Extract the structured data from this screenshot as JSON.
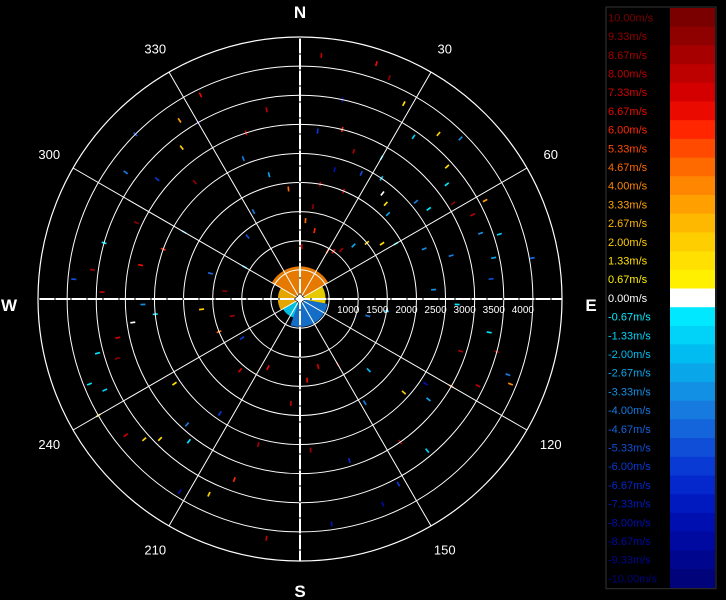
{
  "chart_data": {
    "type": "polar-radar",
    "cardinals": [
      "N",
      "E",
      "S",
      "W"
    ],
    "bearing_labels": [
      30,
      60,
      120,
      150,
      210,
      240,
      300,
      330
    ],
    "range_rings": [
      500,
      1000,
      1500,
      2000,
      2500,
      3000,
      3500,
      4000
    ],
    "range_labels": [
      "1000",
      "1500",
      "2000",
      "2500",
      "3000",
      "3500",
      "4000"
    ],
    "rmax": 4500,
    "legend": {
      "entries": [
        {
          "label": "10.00m/s",
          "value": 10.0,
          "color": "#7a0000"
        },
        {
          "label": "9.33m/s",
          "value": 9.33,
          "color": "#8f0000"
        },
        {
          "label": "8.67m/s",
          "value": 8.67,
          "color": "#a60000"
        },
        {
          "label": "8.00m/s",
          "value": 8.0,
          "color": "#bd0000"
        },
        {
          "label": "7.33m/s",
          "value": 7.33,
          "color": "#d40000"
        },
        {
          "label": "6.67m/s",
          "value": 6.67,
          "color": "#eb0a00"
        },
        {
          "label": "6.00m/s",
          "value": 6.0,
          "color": "#ff2600"
        },
        {
          "label": "5.33m/s",
          "value": 5.33,
          "color": "#ff4a00"
        },
        {
          "label": "4.67m/s",
          "value": 4.67,
          "color": "#ff6a00"
        },
        {
          "label": "4.00m/s",
          "value": 4.0,
          "color": "#ff8600"
        },
        {
          "label": "3.33m/s",
          "value": 3.33,
          "color": "#ffa000"
        },
        {
          "label": "2.67m/s",
          "value": 2.67,
          "color": "#ffb800"
        },
        {
          "label": "2.00m/s",
          "value": 2.0,
          "color": "#ffce00"
        },
        {
          "label": "1.33m/s",
          "value": 1.33,
          "color": "#ffe000"
        },
        {
          "label": "0.67m/s",
          "value": 0.67,
          "color": "#fff000"
        },
        {
          "label": "0.00m/s",
          "value": 0.0,
          "color": "#ffffff"
        },
        {
          "label": "-0.67m/s",
          "value": -0.67,
          "color": "#00e8ff"
        },
        {
          "label": "-1.33m/s",
          "value": -1.33,
          "color": "#00d2f8"
        },
        {
          "label": "-2.00m/s",
          "value": -2.0,
          "color": "#00bcf0"
        },
        {
          "label": "-2.67m/s",
          "value": -2.67,
          "color": "#0aa6ea"
        },
        {
          "label": "-3.33m/s",
          "value": -3.33,
          "color": "#1290e4"
        },
        {
          "label": "-4.00m/s",
          "value": -4.0,
          "color": "#167ade"
        },
        {
          "label": "-4.67m/s",
          "value": -4.67,
          "color": "#1464dc"
        },
        {
          "label": "-5.33m/s",
          "value": -5.33,
          "color": "#104ed8"
        },
        {
          "label": "-6.00m/s",
          "value": -6.0,
          "color": "#0a3ad4"
        },
        {
          "label": "-6.67m/s",
          "value": -6.67,
          "color": "#0428cc"
        },
        {
          "label": "-7.33m/s",
          "value": -7.33,
          "color": "#001ac0"
        },
        {
          "label": "-8.00m/s",
          "value": -8.0,
          "color": "#0010b0"
        },
        {
          "label": "-8.67m/s",
          "value": -8.67,
          "color": "#000aa0"
        },
        {
          "label": "-9.33m/s",
          "value": -9.33,
          "color": "#00068e"
        },
        {
          "label": "-10.00m/s",
          "value": -10.0,
          "color": "#00037a"
        }
      ]
    },
    "echoes": [
      {
        "az": 5,
        "r": 4200,
        "v": 8.0
      },
      {
        "az": 18,
        "r": 4250,
        "v": 6.67
      },
      {
        "az": 22,
        "r": 4100,
        "v": 9.33
      },
      {
        "az": 28,
        "r": 3800,
        "v": 1.33
      },
      {
        "az": 35,
        "r": 3400,
        "v": -1.33
      },
      {
        "az": 40,
        "r": 3700,
        "v": 2.0
      },
      {
        "az": 45,
        "r": 3900,
        "v": -3.33
      },
      {
        "az": 48,
        "r": 3400,
        "v": 1.33
      },
      {
        "az": 52,
        "r": 3200,
        "v": -0.67
      },
      {
        "az": 12,
        "r": 3500,
        "v": -8.67
      },
      {
        "az": 14,
        "r": 3000,
        "v": 6.0
      },
      {
        "az": 20,
        "r": 2700,
        "v": 8.67
      },
      {
        "az": 26,
        "r": 2400,
        "v": -5.33
      },
      {
        "az": 30,
        "r": 2800,
        "v": -0.67
      },
      {
        "az": 34,
        "r": 2500,
        "v": -2.0
      },
      {
        "az": 38,
        "r": 2300,
        "v": 0.0
      },
      {
        "az": 42,
        "r": 2200,
        "v": 1.33
      },
      {
        "az": 46,
        "r": 2100,
        "v": -2.67
      },
      {
        "az": 50,
        "r": 2600,
        "v": -4.0
      },
      {
        "az": 55,
        "r": 2700,
        "v": -0.67
      },
      {
        "az": 58,
        "r": 3100,
        "v": 9.33
      },
      {
        "az": 62,
        "r": 3600,
        "v": 3.33
      },
      {
        "az": 64,
        "r": 3300,
        "v": 8.0
      },
      {
        "az": 70,
        "r": 3300,
        "v": -3.33
      },
      {
        "az": 72,
        "r": 3600,
        "v": -1.33
      },
      {
        "az": 78,
        "r": 3400,
        "v": -2.67
      },
      {
        "az": 80,
        "r": 4050,
        "v": -4.67
      },
      {
        "az": 84,
        "r": 3300,
        "v": -5.33
      },
      {
        "az": 74,
        "r": 2700,
        "v": -4.0
      },
      {
        "az": 68,
        "r": 2300,
        "v": -3.33
      },
      {
        "az": 60,
        "r": 1900,
        "v": -0.67
      },
      {
        "az": 56,
        "r": 1700,
        "v": 1.33
      },
      {
        "az": 50,
        "r": 1500,
        "v": 2.0
      },
      {
        "az": 45,
        "r": 1300,
        "v": -2.67
      },
      {
        "az": 40,
        "r": 1100,
        "v": 8.67
      },
      {
        "az": 35,
        "r": 1000,
        "v": 6.67
      },
      {
        "az": 30,
        "r": 950,
        "v": 5.33
      },
      {
        "az": 8,
        "r": 1600,
        "v": 9.33
      },
      {
        "az": 10,
        "r": 2000,
        "v": 8.67
      },
      {
        "az": 4,
        "r": 1350,
        "v": 4.67
      },
      {
        "az": 2,
        "r": 900,
        "v": 8.0
      },
      {
        "az": 12,
        "r": 1200,
        "v": 6.0
      },
      {
        "az": 15,
        "r": 2300,
        "v": -8.0
      },
      {
        "az": 22,
        "r": 2000,
        "v": 8.0
      },
      {
        "az": 6,
        "r": 2900,
        "v": -6.0
      },
      {
        "az": 100,
        "r": 3300,
        "v": -0.67
      },
      {
        "az": 105,
        "r": 3500,
        "v": 9.33
      },
      {
        "az": 110,
        "r": 3800,
        "v": -4.0
      },
      {
        "az": 112,
        "r": 3900,
        "v": 4.0
      },
      {
        "az": 108,
        "r": 2900,
        "v": 8.67
      },
      {
        "az": 116,
        "r": 3400,
        "v": 8.0
      },
      {
        "az": 120,
        "r": 3000,
        "v": 4.67
      },
      {
        "az": 124,
        "r": 2600,
        "v": -8.0
      },
      {
        "az": 128,
        "r": 2800,
        "v": -2.67
      },
      {
        "az": 132,
        "r": 2400,
        "v": 2.0
      },
      {
        "az": 140,
        "r": 3400,
        "v": -1.33
      },
      {
        "az": 145,
        "r": 3000,
        "v": 9.33
      },
      {
        "az": 152,
        "r": 3600,
        "v": -6.0
      },
      {
        "az": 158,
        "r": 3800,
        "v": -8.67
      },
      {
        "az": 163,
        "r": 2900,
        "v": -6.67
      },
      {
        "az": 172,
        "r": 3900,
        "v": -8.0
      },
      {
        "az": 176,
        "r": 2600,
        "v": 8.67
      },
      {
        "az": 148,
        "r": 2100,
        "v": -4.0
      },
      {
        "az": 136,
        "r": 1700,
        "v": -2.0
      },
      {
        "az": 150,
        "r": 1300,
        "v": 9.33
      },
      {
        "az": 165,
        "r": 1200,
        "v": 7.33
      },
      {
        "az": 175,
        "r": 1400,
        "v": 6.67
      },
      {
        "az": 185,
        "r": 1800,
        "v": 8.0
      },
      {
        "az": 188,
        "r": 4150,
        "v": 8.0
      },
      {
        "az": 196,
        "r": 2600,
        "v": 8.67
      },
      {
        "az": 200,
        "r": 3300,
        "v": 6.0
      },
      {
        "az": 205,
        "r": 3700,
        "v": 2.0
      },
      {
        "az": 212,
        "r": 3900,
        "v": -8.0
      },
      {
        "az": 215,
        "r": 2400,
        "v": -6.0
      },
      {
        "az": 218,
        "r": 3100,
        "v": -0.67
      },
      {
        "az": 222,
        "r": 2900,
        "v": -4.0
      },
      {
        "az": 225,
        "r": 3400,
        "v": 1.33
      },
      {
        "az": 228,
        "r": 3600,
        "v": 2.0
      },
      {
        "az": 232,
        "r": 3800,
        "v": 7.33
      },
      {
        "az": 236,
        "r": 2600,
        "v": 1.33
      },
      {
        "az": 240,
        "r": 4000,
        "v": 1.33
      },
      {
        "az": 245,
        "r": 3700,
        "v": -1.33
      },
      {
        "az": 248,
        "r": 3900,
        "v": -0.67
      },
      {
        "az": 252,
        "r": 3300,
        "v": 9.33
      },
      {
        "az": 255,
        "r": 3600,
        "v": -0.67
      },
      {
        "az": 258,
        "r": 3200,
        "v": 7.33
      },
      {
        "az": 262,
        "r": 2900,
        "v": 0.0
      },
      {
        "az": 264,
        "r": 2500,
        "v": -0.67
      },
      {
        "az": 268,
        "r": 2700,
        "v": -3.33
      },
      {
        "az": 272,
        "r": 3400,
        "v": 8.0
      },
      {
        "az": 275,
        "r": 3900,
        "v": -5.33
      },
      {
        "az": 278,
        "r": 3600,
        "v": 8.67
      },
      {
        "az": 282,
        "r": 2800,
        "v": 6.67
      },
      {
        "az": 286,
        "r": 3500,
        "v": -0.67
      },
      {
        "az": 290,
        "r": 2500,
        "v": 6.0
      },
      {
        "az": 295,
        "r": 3100,
        "v": 9.33
      },
      {
        "az": 300,
        "r": 2300,
        "v": -2.67
      },
      {
        "az": 306,
        "r": 3700,
        "v": -4.0
      },
      {
        "az": 310,
        "r": 3200,
        "v": -6.0
      },
      {
        "az": 315,
        "r": 4000,
        "v": -5.33
      },
      {
        "az": 318,
        "r": 2700,
        "v": 9.33
      },
      {
        "az": 322,
        "r": 3300,
        "v": 2.0
      },
      {
        "az": 326,
        "r": 3700,
        "v": 3.33
      },
      {
        "az": 330,
        "r": 3500,
        "v": -8.67
      },
      {
        "az": 334,
        "r": 3900,
        "v": 6.67
      },
      {
        "az": 338,
        "r": 2600,
        "v": -4.0
      },
      {
        "az": 342,
        "r": 3000,
        "v": 8.0
      },
      {
        "az": 346,
        "r": 2200,
        "v": -2.67
      },
      {
        "az": 350,
        "r": 3300,
        "v": 8.0
      },
      {
        "az": 354,
        "r": 1900,
        "v": 4.67
      },
      {
        "az": 248,
        "r": 1500,
        "v": 4.67
      },
      {
        "az": 256,
        "r": 1200,
        "v": 8.67
      },
      {
        "az": 264,
        "r": 1700,
        "v": 2.0
      },
      {
        "az": 276,
        "r": 1300,
        "v": 9.33
      },
      {
        "az": 286,
        "r": 1600,
        "v": -4.67
      },
      {
        "az": 300,
        "r": 1100,
        "v": -2.0
      },
      {
        "az": 320,
        "r": 1400,
        "v": -5.33
      },
      {
        "az": 332,
        "r": 1700,
        "v": -4.0
      },
      {
        "az": 205,
        "r": 1300,
        "v": 6.67
      },
      {
        "az": 220,
        "r": 1600,
        "v": 7.33
      },
      {
        "az": 236,
        "r": 1200,
        "v": -6.0
      },
      {
        "az": 98,
        "r": 1500,
        "v": -2.67
      },
      {
        "az": 104,
        "r": 1200,
        "v": -4.0
      },
      {
        "az": 92,
        "r": 2700,
        "v": -0.67
      },
      {
        "az": 86,
        "r": 2300,
        "v": -3.33
      }
    ],
    "near_field": [
      {
        "az_from": 300,
        "az_to": 420,
        "rmin": 80,
        "rmax": 560,
        "v": 4.0
      },
      {
        "az_from": 240,
        "az_to": 300,
        "rmin": 80,
        "rmax": 380,
        "v": 2.67
      },
      {
        "az_from": 60,
        "az_to": 100,
        "rmin": 80,
        "rmax": 440,
        "v": 1.33
      },
      {
        "az_from": 100,
        "az_to": 200,
        "rmin": 80,
        "rmax": 480,
        "v": -4.0
      },
      {
        "az_from": 200,
        "az_to": 240,
        "rmin": 80,
        "rmax": 340,
        "v": -1.33
      }
    ]
  }
}
